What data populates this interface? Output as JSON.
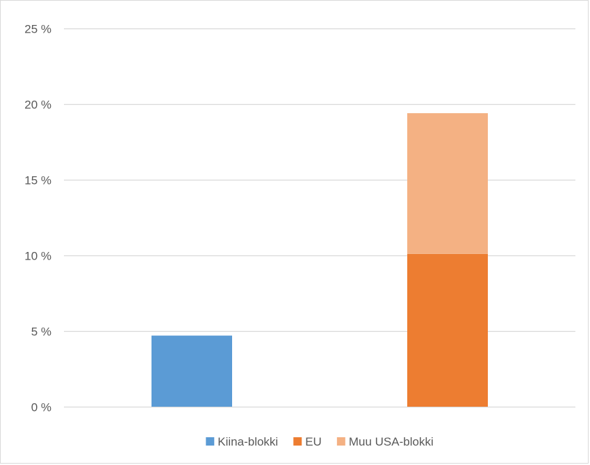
{
  "chart_data": {
    "type": "bar",
    "stacked": true,
    "categories": [
      "",
      ""
    ],
    "series": [
      {
        "name": "Kiina-blokki",
        "values": [
          4.7,
          0
        ],
        "color": "#5b9bd5"
      },
      {
        "name": "EU",
        "values": [
          0,
          10.1
        ],
        "color": "#ed7d31"
      },
      {
        "name": "Muu USA-blokki",
        "values": [
          0,
          9.3
        ],
        "color": "#f4b183"
      }
    ],
    "ylim": [
      0,
      25
    ],
    "yticks": [
      0,
      5,
      10,
      15,
      20,
      25
    ],
    "ytick_labels": [
      "0 %",
      "5 %",
      "10 %",
      "15 %",
      "20 %",
      "25 %"
    ],
    "grid": true,
    "gridline_color": "#d9d9d9",
    "legend_position": "bottom",
    "title": "",
    "xlabel": "",
    "ylabel": ""
  }
}
